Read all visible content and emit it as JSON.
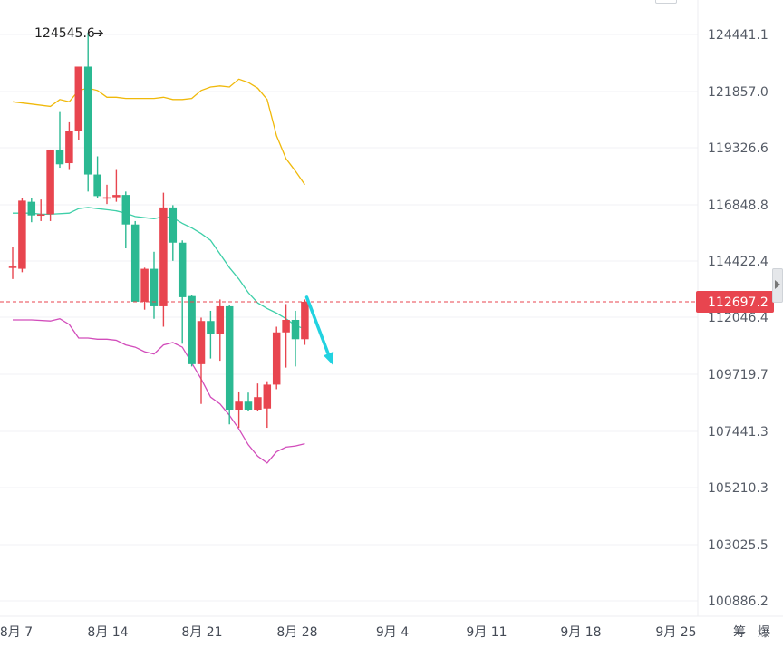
{
  "chart_data": {
    "type": "candlestick",
    "y_axis_ticks": [
      "124441.1",
      "121857.0",
      "119326.6",
      "116848.8",
      "114422.4",
      "112046.4",
      "109719.7",
      "107441.3",
      "105210.3",
      "103025.5",
      "100886.2"
    ],
    "x_axis_ticks": [
      "8月 7",
      "8月 14",
      "8月 21",
      "8月 28",
      "9月 4",
      "9月 11",
      "9月 18",
      "9月 25"
    ],
    "bottom_controls": [
      "筹",
      "爆"
    ],
    "high_annotation": "124545.6",
    "current_price": "112697.2",
    "current_price_value": 112697.2,
    "colors": {
      "up": "#e8454f",
      "down": "#2bb992",
      "upper_band": "#f0b90b",
      "middle_band": "#3ecfa8",
      "lower_band": "#d24dbb",
      "arrow": "#22d2e0",
      "price_line": "#e8454f"
    },
    "candles": [
      {
        "o": 114250,
        "h": 115100,
        "l": 113700,
        "c": 114250
      },
      {
        "o": 114150,
        "h": 117250,
        "l": 114000,
        "c": 117150
      },
      {
        "o": 117100,
        "h": 117250,
        "l": 116200,
        "c": 116500
      },
      {
        "o": 116550,
        "h": 117200,
        "l": 116250,
        "c": 116550
      },
      {
        "o": 116550,
        "h": 119400,
        "l": 116250,
        "c": 119400
      },
      {
        "o": 119400,
        "h": 121050,
        "l": 118600,
        "c": 118750
      },
      {
        "o": 118800,
        "h": 120600,
        "l": 118500,
        "c": 120200
      },
      {
        "o": 120200,
        "h": 123050,
        "l": 119800,
        "c": 123050
      },
      {
        "o": 123050,
        "h": 124545.6,
        "l": 117550,
        "c": 118300
      },
      {
        "o": 118300,
        "h": 119100,
        "l": 117250,
        "c": 117350
      },
      {
        "o": 117300,
        "h": 117850,
        "l": 117000,
        "c": 117300
      },
      {
        "o": 117300,
        "h": 118500,
        "l": 117100,
        "c": 117400
      },
      {
        "o": 117400,
        "h": 117550,
        "l": 115050,
        "c": 116100
      },
      {
        "o": 116100,
        "h": 116250,
        "l": 112700,
        "c": 112700
      },
      {
        "o": 112700,
        "h": 114200,
        "l": 112350,
        "c": 114150
      },
      {
        "o": 114150,
        "h": 114900,
        "l": 111950,
        "c": 112500
      },
      {
        "o": 112500,
        "h": 117500,
        "l": 111600,
        "c": 116850
      },
      {
        "o": 116850,
        "h": 116950,
        "l": 114500,
        "c": 115300
      },
      {
        "o": 115300,
        "h": 115400,
        "l": 110850,
        "c": 112900
      },
      {
        "o": 112950,
        "h": 113000,
        "l": 109850,
        "c": 109950
      },
      {
        "o": 109950,
        "h": 112000,
        "l": 108200,
        "c": 111850
      },
      {
        "o": 111850,
        "h": 112300,
        "l": 110200,
        "c": 111300
      },
      {
        "o": 111300,
        "h": 112800,
        "l": 110100,
        "c": 112500
      },
      {
        "o": 112500,
        "h": 112550,
        "l": 107300,
        "c": 107950
      },
      {
        "o": 107950,
        "h": 108750,
        "l": 107150,
        "c": 108300
      },
      {
        "o": 108300,
        "h": 108700,
        "l": 107900,
        "c": 107950
      },
      {
        "o": 107950,
        "h": 109100,
        "l": 107900,
        "c": 108500
      },
      {
        "o": 108000,
        "h": 109200,
        "l": 107150,
        "c": 109050
      },
      {
        "o": 109050,
        "h": 111600,
        "l": 108850,
        "c": 111350
      },
      {
        "o": 111350,
        "h": 112600,
        "l": 109800,
        "c": 111900
      },
      {
        "o": 111900,
        "h": 112300,
        "l": 109850,
        "c": 111050
      },
      {
        "o": 111050,
        "h": 112800,
        "l": 110800,
        "c": 112700
      }
    ],
    "upper_band": [
      [
        0,
        121500
      ],
      [
        2,
        121400
      ],
      [
        4,
        121300
      ],
      [
        5,
        121600
      ],
      [
        6,
        121500
      ],
      [
        7,
        122000
      ],
      [
        8,
        122100
      ],
      [
        9,
        122000
      ],
      [
        10,
        121700
      ],
      [
        11,
        121700
      ],
      [
        12,
        121650
      ],
      [
        13,
        121650
      ],
      [
        14,
        121650
      ],
      [
        15,
        121650
      ],
      [
        16,
        121700
      ],
      [
        17,
        121600
      ],
      [
        18,
        121600
      ],
      [
        19,
        121650
      ],
      [
        20,
        122000
      ],
      [
        21,
        122150
      ],
      [
        22,
        122200
      ],
      [
        23,
        122150
      ],
      [
        24,
        122500
      ],
      [
        25,
        122350
      ],
      [
        26,
        122100
      ],
      [
        27,
        121600
      ],
      [
        28,
        120000
      ],
      [
        29,
        119000
      ],
      [
        30,
        118450
      ],
      [
        31,
        117850
      ]
    ],
    "middle_band": [
      [
        0,
        116600
      ],
      [
        2,
        116600
      ],
      [
        3,
        116550
      ],
      [
        4,
        116550
      ],
      [
        6,
        116600
      ],
      [
        7,
        116800
      ],
      [
        8,
        116850
      ],
      [
        9,
        116800
      ],
      [
        10,
        116750
      ],
      [
        11,
        116700
      ],
      [
        12,
        116600
      ],
      [
        13,
        116450
      ],
      [
        14,
        116400
      ],
      [
        15,
        116350
      ],
      [
        16,
        116450
      ],
      [
        17,
        116400
      ],
      [
        18,
        116150
      ],
      [
        19,
        115950
      ],
      [
        20,
        115700
      ],
      [
        21,
        115400
      ],
      [
        22,
        114800
      ],
      [
        23,
        114200
      ],
      [
        24,
        113700
      ],
      [
        25,
        113100
      ],
      [
        26,
        112650
      ],
      [
        27,
        112400
      ],
      [
        28,
        112200
      ],
      [
        29,
        111950
      ],
      [
        30,
        111650
      ],
      [
        31,
        111500
      ]
    ],
    "lower_band": [
      [
        0,
        111900
      ],
      [
        2,
        111900
      ],
      [
        4,
        111850
      ],
      [
        5,
        111950
      ],
      [
        6,
        111700
      ],
      [
        7,
        111100
      ],
      [
        8,
        111100
      ],
      [
        9,
        111050
      ],
      [
        10,
        111050
      ],
      [
        11,
        111000
      ],
      [
        12,
        110800
      ],
      [
        13,
        110700
      ],
      [
        14,
        110500
      ],
      [
        15,
        110400
      ],
      [
        16,
        110800
      ],
      [
        17,
        110900
      ],
      [
        18,
        110700
      ],
      [
        19,
        110000
      ],
      [
        20,
        109300
      ],
      [
        21,
        108500
      ],
      [
        22,
        108200
      ],
      [
        23,
        107700
      ],
      [
        24,
        107100
      ],
      [
        25,
        106400
      ],
      [
        26,
        105900
      ],
      [
        27,
        105600
      ],
      [
        28,
        106100
      ],
      [
        29,
        106300
      ],
      [
        30,
        106350
      ],
      [
        31,
        106450
      ]
    ],
    "forecast_arrow": {
      "from_index": 31.2,
      "from_price": 112900,
      "to_index": 34.0,
      "to_price": 109900
    }
  }
}
